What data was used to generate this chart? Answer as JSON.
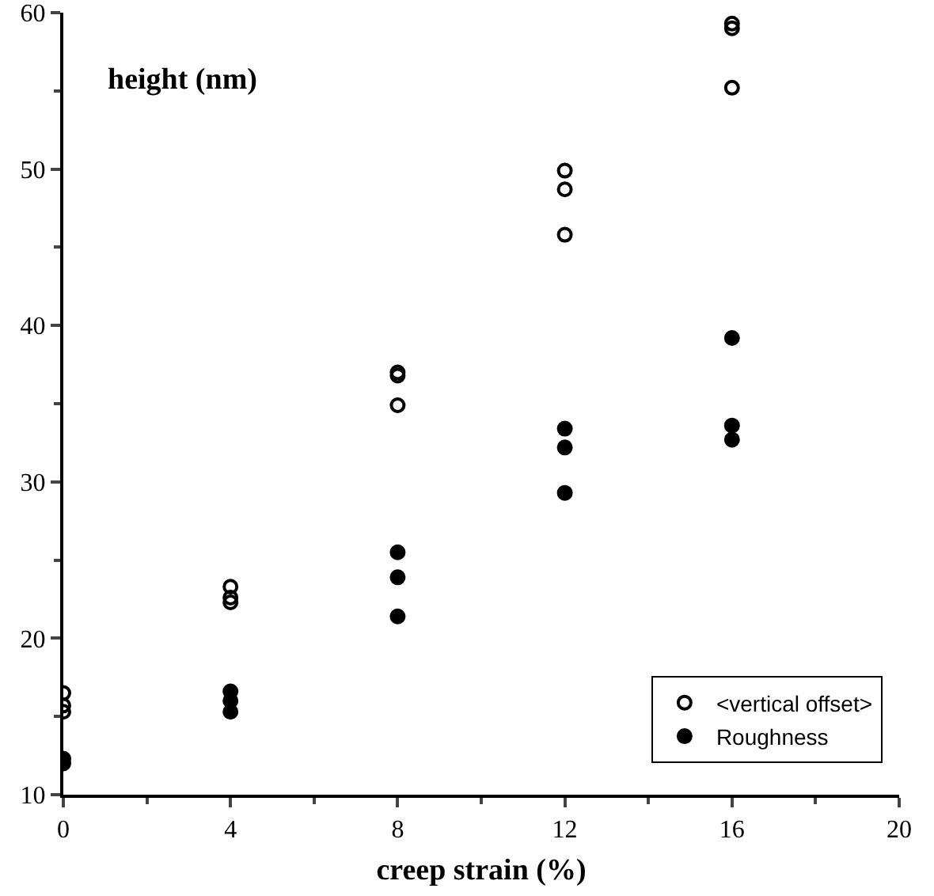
{
  "chart_data": {
    "type": "scatter",
    "xlabel": "creep strain (%)",
    "ylabel": "height (nm)",
    "xlim": [
      0,
      20
    ],
    "xticks": [
      0,
      4,
      8,
      12,
      16,
      20
    ],
    "ylim": [
      10,
      60
    ],
    "yticks": [
      10,
      20,
      30,
      40,
      50,
      60
    ],
    "grid": false,
    "legend": "bottom right",
    "series": [
      {
        "name": "<vertical offset>",
        "color": "#000000",
        "marker": "circle-open",
        "x": [
          0,
          0,
          0,
          4,
          4,
          4,
          8,
          8,
          8,
          12,
          12,
          12,
          16,
          16,
          16
        ],
        "values": [
          16.5,
          15.7,
          15.3,
          23.3,
          22.6,
          22.3,
          37.0,
          36.8,
          34.9,
          49.9,
          48.7,
          45.8,
          59.3,
          59.0,
          55.2
        ]
      },
      {
        "name": "Roughness",
        "color": "#000000",
        "marker": "circle",
        "x": [
          0,
          0,
          4,
          4,
          4,
          8,
          8,
          8,
          12,
          12,
          12,
          16,
          16,
          16
        ],
        "values": [
          12.3,
          12.0,
          16.6,
          16.0,
          15.3,
          25.5,
          23.9,
          21.4,
          33.4,
          32.2,
          29.3,
          39.2,
          33.6,
          32.7
        ]
      }
    ]
  }
}
